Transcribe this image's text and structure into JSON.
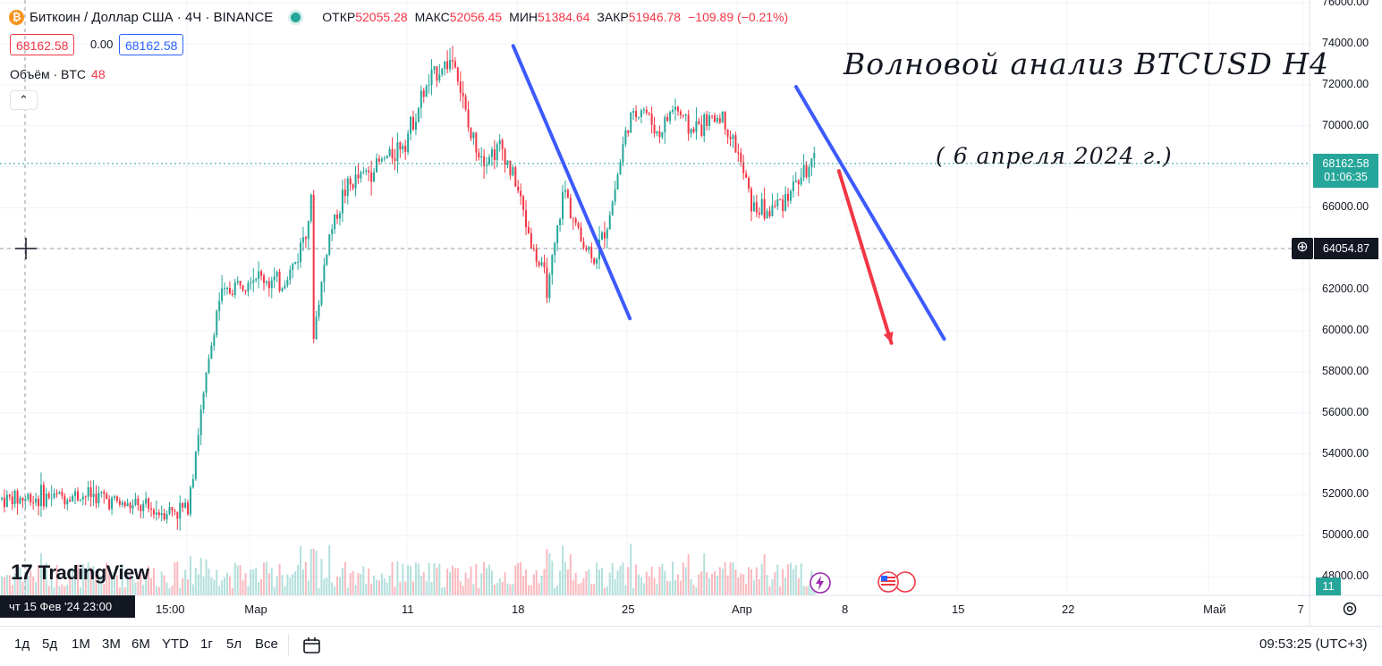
{
  "header": {
    "symbol_title": "Биткоин / Доллар США · 4Ч · BINANCE",
    "btc_icon": "₿",
    "ohlc": [
      {
        "key": "ОТКР",
        "value": "52055.28"
      },
      {
        "key": "МАКС",
        "value": "52056.45"
      },
      {
        "key": "МИН",
        "value": "51384.64"
      },
      {
        "key": "ЗАКР",
        "value": "51946.78"
      }
    ],
    "change": "−109.89 (−0.21%)",
    "sell_price": "68162.58",
    "spread": "0.00",
    "buy_price": "68162.58",
    "volume_label": "Объём · BTC",
    "volume_value": "48",
    "collapse_glyph": "⌃"
  },
  "annotation": {
    "title": "Волновой анализ BTCUSD H4",
    "date": "( 6 апреля 2024 г.)"
  },
  "price_axis": {
    "ticks": [
      "76000.00",
      "74000.00",
      "72000.00",
      "70000.00",
      "66000.00",
      "62000.00",
      "60000.00",
      "58000.00",
      "56000.00",
      "54000.00",
      "52000.00",
      "50000.00",
      "48000.00"
    ],
    "last_price": "68162.58",
    "countdown": "01:06:35",
    "crosshair_price": "64054.87",
    "volume_tag": "11"
  },
  "time_axis": {
    "ticks": [
      "15:00",
      "Мар",
      "11",
      "18",
      "25",
      "Апр",
      "8",
      "15",
      "22",
      "Май",
      "7"
    ],
    "crosshair_time": "чт 15 Фев '24   23:00"
  },
  "timeframes": [
    "1д",
    "5д",
    "1М",
    "3М",
    "6М",
    "YTD",
    "1г",
    "5л",
    "Все"
  ],
  "clock": "09:53:25 (UTC+3)",
  "logo_text": "TradingView",
  "colors": {
    "up": "#26a69a",
    "down": "#f23645",
    "blue_line": "#3d5afe",
    "red_arrow": "#f23645"
  },
  "chart_data": {
    "type": "candlestick",
    "symbol": "BTCUSD",
    "timeframe": "4Ч",
    "exchange": "BINANCE",
    "ylim": [
      47000,
      76500
    ],
    "x_range": [
      "2024-02-15",
      "2024-05-09"
    ],
    "price_path": [
      {
        "date": "2024-02-15",
        "price": 51800
      },
      {
        "date": "2024-02-17",
        "price": 51900
      },
      {
        "date": "2024-02-20",
        "price": 52000
      },
      {
        "date": "2024-02-22",
        "price": 51500
      },
      {
        "date": "2024-02-24",
        "price": 51200
      },
      {
        "date": "2024-02-26",
        "price": 51300
      },
      {
        "date": "2024-02-27",
        "price": 56500
      },
      {
        "date": "2024-02-28",
        "price": 61500
      },
      {
        "date": "2024-03-01",
        "price": 62800
      },
      {
        "date": "2024-03-03",
        "price": 62200
      },
      {
        "date": "2024-03-04",
        "price": 63500
      },
      {
        "date": "2024-03-05",
        "price": 66500
      },
      {
        "date": "2024-03-05",
        "price": 59500
      },
      {
        "date": "2024-03-06",
        "price": 64500
      },
      {
        "date": "2024-03-07",
        "price": 66800
      },
      {
        "date": "2024-03-08",
        "price": 67500
      },
      {
        "date": "2024-03-10",
        "price": 68600
      },
      {
        "date": "2024-03-11",
        "price": 69500
      },
      {
        "date": "2024-03-12",
        "price": 71500
      },
      {
        "date": "2024-03-13",
        "price": 72800
      },
      {
        "date": "2024-03-14",
        "price": 73300
      },
      {
        "date": "2024-03-15",
        "price": 69500
      },
      {
        "date": "2024-03-16",
        "price": 68500
      },
      {
        "date": "2024-03-17",
        "price": 69000
      },
      {
        "date": "2024-03-18",
        "price": 67000
      },
      {
        "date": "2024-03-19",
        "price": 64000
      },
      {
        "date": "2024-03-20",
        "price": 62000
      },
      {
        "date": "2024-03-21",
        "price": 67000
      },
      {
        "date": "2024-03-22",
        "price": 64500
      },
      {
        "date": "2024-03-23",
        "price": 63500
      },
      {
        "date": "2024-03-24",
        "price": 66000
      },
      {
        "date": "2024-03-25",
        "price": 70000
      },
      {
        "date": "2024-03-26",
        "price": 71000
      },
      {
        "date": "2024-03-27",
        "price": 69500
      },
      {
        "date": "2024-03-28",
        "price": 71000
      },
      {
        "date": "2024-03-29",
        "price": 69800
      },
      {
        "date": "2024-03-31",
        "price": 70500
      },
      {
        "date": "2024-04-01",
        "price": 68800
      },
      {
        "date": "2024-04-02",
        "price": 66000
      },
      {
        "date": "2024-04-03",
        "price": 65800
      },
      {
        "date": "2024-04-04",
        "price": 66500
      },
      {
        "date": "2024-04-05",
        "price": 67500
      },
      {
        "date": "2024-04-06",
        "price": 68162.58
      }
    ],
    "blue_wave_lines": [
      {
        "from": {
          "date": "2024-03-14",
          "price": 73900
        },
        "to": {
          "date": "2024-03-20",
          "price": 60600
        }
      },
      {
        "from": {
          "date": "2024-04-01",
          "price": 71900
        },
        "to": {
          "date": "2024-04-09",
          "price": 59600
        }
      }
    ],
    "forecast_arrow": {
      "from": {
        "date": "2024-04-06",
        "price": 67800
      },
      "to": {
        "date": "2024-04-09",
        "price": 59400
      }
    },
    "last_price": 68162.58,
    "crosshair_price": 64054.87
  }
}
